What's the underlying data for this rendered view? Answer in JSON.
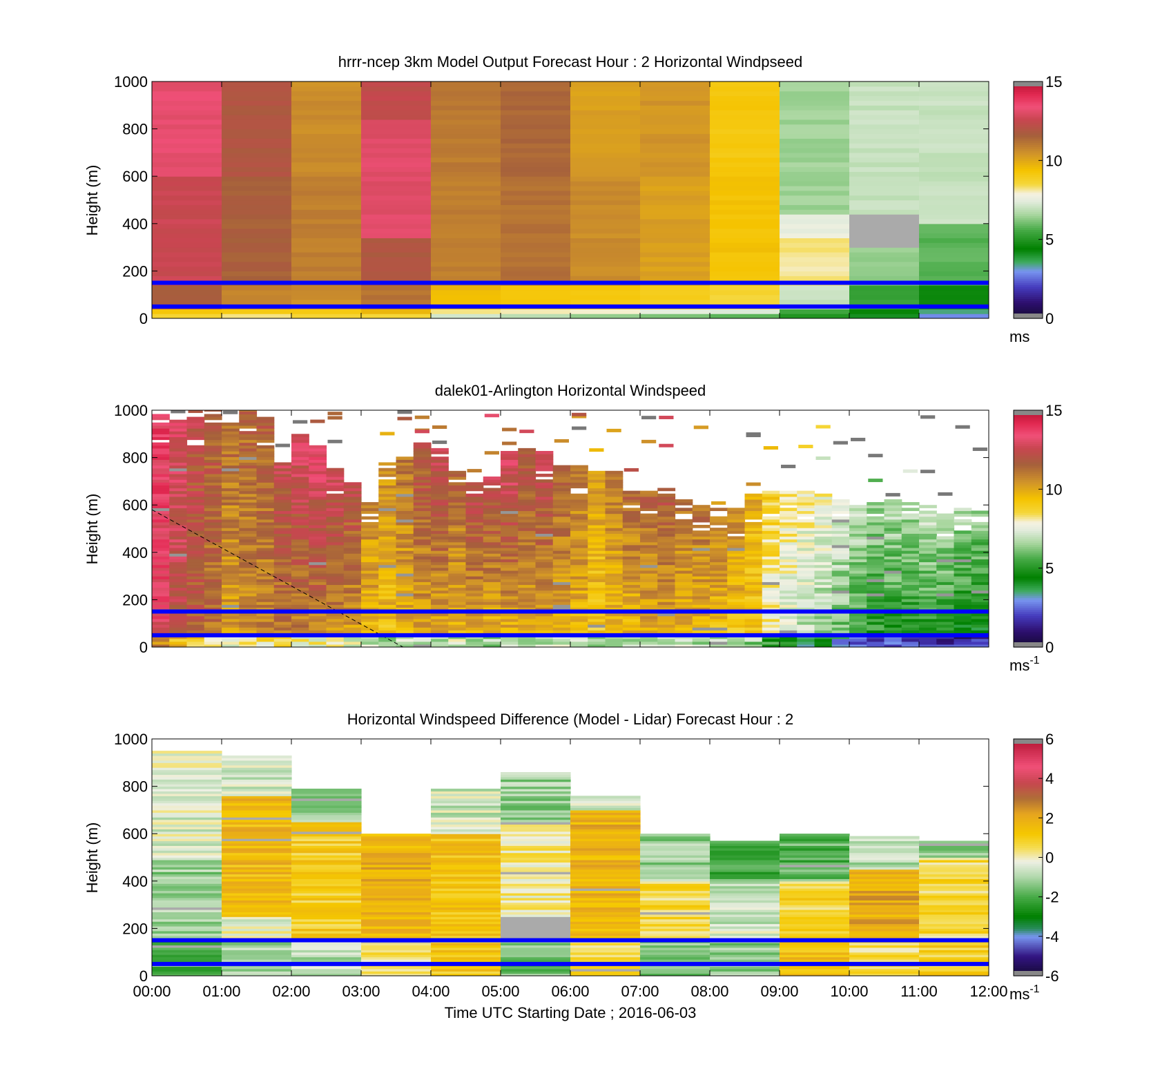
{
  "figure": {
    "time_axis_label": "Time UTC  Starting Date ; 2016-06-03"
  },
  "chart_data": [
    {
      "type": "heatmap",
      "title": "hrrr-ncep 3km Model Output   Forecast Hour : 2 Horizontal Windpseed",
      "ylabel": "Height (m)",
      "ylim": [
        0,
        1000
      ],
      "yticks": [
        0,
        200,
        400,
        600,
        800,
        1000
      ],
      "xlim": [
        0,
        12
      ],
      "x_tick_labels": [],
      "colorbar": {
        "range": [
          0,
          15
        ],
        "ticks": [
          0,
          5,
          10,
          15
        ],
        "unit_base": "ms",
        "unit_sup": ""
      },
      "reference_lines_m": [
        150,
        50
      ],
      "reference_line_color": "#0000ff",
      "columns": [
        {
          "hour": 0,
          "profile": [
            [
              0,
              20,
              8.5
            ],
            [
              20,
              40,
              9.4
            ],
            [
              40,
              150,
              11.8
            ],
            [
              150,
              600,
              12.6
            ],
            [
              600,
              1000,
              13.2
            ]
          ]
        },
        {
          "hour": 1,
          "profile": [
            [
              0,
              20,
              8.4
            ],
            [
              20,
              40,
              9.2
            ],
            [
              40,
              150,
              10.8
            ],
            [
              150,
              600,
              11.6
            ],
            [
              600,
              1000,
              11.9
            ]
          ]
        },
        {
          "hour": 2,
          "profile": [
            [
              0,
              20,
              8.6
            ],
            [
              20,
              40,
              9.3
            ],
            [
              40,
              150,
              10.6
            ],
            [
              150,
              600,
              10.9
            ],
            [
              600,
              1000,
              10.6
            ]
          ]
        },
        {
          "hour": 3,
          "profile": [
            [
              0,
              20,
              8.6
            ],
            [
              20,
              40,
              9.6
            ],
            [
              40,
              150,
              11.2
            ],
            [
              150,
              350,
              11.9
            ],
            [
              350,
              850,
              13.1
            ],
            [
              850,
              1000,
              12.4
            ]
          ]
        },
        {
          "hour": 4,
          "profile": [
            [
              0,
              20,
              7.2
            ],
            [
              20,
              40,
              8.4
            ],
            [
              40,
              150,
              9.6
            ],
            [
              150,
              600,
              10.9
            ],
            [
              600,
              1000,
              11.0
            ]
          ]
        },
        {
          "hour": 5,
          "profile": [
            [
              0,
              20,
              6.8
            ],
            [
              20,
              40,
              8.2
            ],
            [
              40,
              150,
              9.3
            ],
            [
              150,
              600,
              11.2
            ],
            [
              600,
              1000,
              11.4
            ]
          ]
        },
        {
          "hour": 6,
          "profile": [
            [
              0,
              20,
              6.5
            ],
            [
              20,
              40,
              8.0
            ],
            [
              40,
              150,
              9.2
            ],
            [
              150,
              600,
              10.6
            ],
            [
              600,
              1000,
              10.2
            ]
          ]
        },
        {
          "hour": 7,
          "profile": [
            [
              0,
              20,
              6.2
            ],
            [
              20,
              40,
              7.6
            ],
            [
              40,
              150,
              9.0
            ],
            [
              150,
              600,
              10.2
            ],
            [
              600,
              1000,
              10.4
            ]
          ]
        },
        {
          "hour": 8,
          "profile": [
            [
              0,
              20,
              5.8
            ],
            [
              20,
              40,
              7.2
            ],
            [
              40,
              150,
              8.6
            ],
            [
              150,
              600,
              9.4
            ],
            [
              600,
              1000,
              9.2
            ]
          ]
        },
        {
          "hour": 9,
          "profile": [
            [
              0,
              20,
              4.8
            ],
            [
              20,
              40,
              5.6
            ],
            [
              40,
              150,
              7.0
            ],
            [
              150,
              350,
              8.2
            ],
            [
              350,
              450,
              7.6
            ],
            [
              450,
              1000,
              6.5
            ]
          ]
        },
        {
          "hour": 10,
          "profile": [
            [
              0,
              20,
              4.0
            ],
            [
              20,
              40,
              4.6
            ],
            [
              40,
              150,
              5.4
            ],
            [
              150,
              300,
              6.4
            ],
            [
              300,
              450,
              "nan"
            ],
            [
              450,
              1000,
              7.0
            ]
          ]
        },
        {
          "hour": 11,
          "profile": [
            [
              0,
              20,
              3.0
            ],
            [
              20,
              40,
              3.4
            ],
            [
              40,
              150,
              4.6
            ],
            [
              150,
              400,
              5.8
            ],
            [
              400,
              1000,
              7.0
            ]
          ]
        }
      ]
    },
    {
      "type": "heatmap",
      "title": "dalek01-Arlington  Horizontal Windspeed",
      "ylabel": "Height (m)",
      "ylim": [
        0,
        1000
      ],
      "yticks": [
        0,
        200,
        400,
        600,
        800,
        1000
      ],
      "xlim": [
        0,
        12
      ],
      "x_tick_labels": [],
      "colorbar": {
        "range": [
          0,
          15
        ],
        "ticks": [
          0,
          5,
          10,
          15
        ],
        "unit_base": "ms",
        "unit_sup": "-1"
      },
      "reference_lines_m": [
        150,
        50
      ],
      "reference_line_color": "#0000ff",
      "dashed_line": {
        "points": [
          [
            0,
            580
          ],
          [
            3.6,
            0
          ]
        ]
      },
      "column_width_h": 0.25,
      "columns": [
        {
          "t": 0.0,
          "top": 980,
          "low": 13.2,
          "high": 13.6
        },
        {
          "t": 0.25,
          "top": 970,
          "low": 12.0,
          "high": 13.0
        },
        {
          "t": 0.5,
          "top": 970,
          "low": 11.6,
          "high": 12.2
        },
        {
          "t": 0.75,
          "top": 1000,
          "low": 11.0,
          "high": 11.8
        },
        {
          "t": 1.0,
          "top": 940,
          "low": 10.0,
          "high": 11.2
        },
        {
          "t": 1.25,
          "top": 1000,
          "low": 10.4,
          "high": 11.4
        },
        {
          "t": 1.5,
          "top": 970,
          "low": 10.6,
          "high": 11.6
        },
        {
          "t": 1.75,
          "top": 780,
          "low": 10.6,
          "high": 12.4
        },
        {
          "t": 2.0,
          "top": 890,
          "low": 10.4,
          "high": 13.0
        },
        {
          "t": 2.25,
          "top": 860,
          "low": 10.4,
          "high": 13.2
        },
        {
          "t": 2.5,
          "top": 750,
          "low": 10.2,
          "high": 12.6
        },
        {
          "t": 2.75,
          "top": 690,
          "low": 10.0,
          "high": 12.2
        },
        {
          "t": 3.0,
          "top": 610,
          "low": 9.6,
          "high": 10.6
        },
        {
          "t": 3.25,
          "top": 780,
          "low": 9.2,
          "high": 10.4
        },
        {
          "t": 3.5,
          "top": 800,
          "low": 9.6,
          "high": 11.0
        },
        {
          "t": 3.75,
          "top": 860,
          "low": 9.8,
          "high": 12.0
        },
        {
          "t": 4.0,
          "top": 830,
          "low": 9.6,
          "high": 12.4
        },
        {
          "t": 4.25,
          "top": 740,
          "low": 9.6,
          "high": 11.4
        },
        {
          "t": 4.5,
          "top": 690,
          "low": 9.4,
          "high": 12.4
        },
        {
          "t": 4.75,
          "top": 720,
          "low": 9.2,
          "high": 12.4
        },
        {
          "t": 5.0,
          "top": 820,
          "low": 9.4,
          "high": 13.0
        },
        {
          "t": 5.25,
          "top": 840,
          "low": 9.6,
          "high": 12.0
        },
        {
          "t": 5.5,
          "top": 820,
          "low": 9.6,
          "high": 12.6
        },
        {
          "t": 5.75,
          "top": 760,
          "low": 9.6,
          "high": 11.6
        },
        {
          "t": 6.0,
          "top": 760,
          "low": 9.4,
          "high": 11.2
        },
        {
          "t": 6.25,
          "top": 740,
          "low": 9.0,
          "high": 10.2
        },
        {
          "t": 6.5,
          "top": 740,
          "low": 9.4,
          "high": 10.8
        },
        {
          "t": 6.75,
          "top": 660,
          "low": 9.2,
          "high": 11.4
        },
        {
          "t": 7.0,
          "top": 650,
          "low": 9.6,
          "high": 11.4
        },
        {
          "t": 7.25,
          "top": 670,
          "low": 9.4,
          "high": 12.0
        },
        {
          "t": 7.5,
          "top": 620,
          "low": 9.4,
          "high": 11.2
        },
        {
          "t": 7.75,
          "top": 590,
          "low": 9.4,
          "high": 11.2
        },
        {
          "t": 8.0,
          "top": 580,
          "low": 9.2,
          "high": 11.0
        },
        {
          "t": 8.25,
          "top": 580,
          "low": 9.0,
          "high": 10.6
        },
        {
          "t": 8.5,
          "top": 640,
          "low": 9.0,
          "high": 9.8
        },
        {
          "t": 8.75,
          "top": 650,
          "low": 7.6,
          "high": 8.8
        },
        {
          "t": 9.0,
          "top": 650,
          "low": 7.0,
          "high": 8.4
        },
        {
          "t": 9.25,
          "top": 650,
          "low": 6.6,
          "high": 8.0
        },
        {
          "t": 9.5,
          "top": 640,
          "low": 6.2,
          "high": 7.8
        },
        {
          "t": 9.75,
          "top": 620,
          "low": 5.6,
          "high": 7.4
        },
        {
          "t": 10.0,
          "top": 600,
          "low": 5.2,
          "high": 7.0
        },
        {
          "t": 10.25,
          "top": 620,
          "low": 4.8,
          "high": 6.6
        },
        {
          "t": 10.5,
          "top": 620,
          "low": 4.6,
          "high": 6.8
        },
        {
          "t": 10.75,
          "top": 610,
          "low": 4.4,
          "high": 6.6
        },
        {
          "t": 11.0,
          "top": 590,
          "low": 4.4,
          "high": 7.2
        },
        {
          "t": 11.25,
          "top": 560,
          "low": 4.2,
          "high": 7.0
        },
        {
          "t": 11.5,
          "top": 580,
          "low": 4.0,
          "high": 6.6
        },
        {
          "t": 11.75,
          "top": 570,
          "low": 4.0,
          "high": 6.4
        }
      ]
    },
    {
      "type": "heatmap",
      "title": "Horizontal Windspeed Difference (Model - Lidar) Forecast Hour : 2",
      "ylabel": "Height (m)",
      "xlabel": "Time UTC  Starting Date ; 2016-06-03",
      "ylim": [
        0,
        1000
      ],
      "yticks": [
        0,
        200,
        400,
        600,
        800,
        1000
      ],
      "xlim": [
        0,
        12
      ],
      "x_tick_labels": [
        "00:00",
        "01:00",
        "02:00",
        "03:00",
        "04:00",
        "05:00",
        "06:00",
        "07:00",
        "08:00",
        "09:00",
        "10:00",
        "11:00",
        "12:00"
      ],
      "colorbar": {
        "range": [
          -6,
          6
        ],
        "ticks": [
          -6,
          -4,
          -2,
          0,
          2,
          4,
          6
        ],
        "unit_base": "ms",
        "unit_sup": "-1"
      },
      "reference_lines_m": [
        150,
        50
      ],
      "reference_line_color": "#0000ff",
      "columns": [
        {
          "hour": 0,
          "top": 950,
          "profile": [
            [
              0,
              150,
              -1.8
            ],
            [
              150,
              500,
              -1.2
            ],
            [
              500,
              950,
              -0.4
            ]
          ]
        },
        {
          "hour": 1,
          "top": 930,
          "profile": [
            [
              0,
              150,
              -1.0
            ],
            [
              150,
              250,
              -0.2
            ],
            [
              250,
              760,
              1.6
            ],
            [
              760,
              930,
              -0.6
            ]
          ]
        },
        {
          "hour": 2,
          "top": 790,
          "profile": [
            [
              0,
              150,
              -0.8
            ],
            [
              150,
              650,
              1.0
            ],
            [
              650,
              790,
              -1.4
            ]
          ]
        },
        {
          "hour": 3,
          "top": 600,
          "profile": [
            [
              0,
              150,
              0.4
            ],
            [
              150,
              600,
              1.8
            ]
          ]
        },
        {
          "hour": 4,
          "top": 790,
          "profile": [
            [
              0,
              150,
              1.2
            ],
            [
              150,
              600,
              1.4
            ],
            [
              600,
              790,
              -0.6
            ]
          ]
        },
        {
          "hour": 5,
          "top": 860,
          "profile": [
            [
              0,
              150,
              -1.6
            ],
            [
              150,
              250,
              "nan"
            ],
            [
              250,
              650,
              0.2
            ],
            [
              650,
              860,
              -1.2
            ]
          ]
        },
        {
          "hour": 6,
          "top": 760,
          "profile": [
            [
              0,
              150,
              0.6
            ],
            [
              150,
              700,
              1.8
            ],
            [
              700,
              760,
              -0.6
            ]
          ]
        },
        {
          "hour": 7,
          "top": 600,
          "profile": [
            [
              0,
              150,
              -1.6
            ],
            [
              150,
              400,
              0.6
            ],
            [
              400,
              600,
              -1.2
            ]
          ]
        },
        {
          "hour": 8,
          "top": 570,
          "profile": [
            [
              0,
              150,
              -1.4
            ],
            [
              150,
              400,
              -0.6
            ],
            [
              400,
              570,
              -2.0
            ]
          ]
        },
        {
          "hour": 9,
          "top": 600,
          "profile": [
            [
              0,
              150,
              1.4
            ],
            [
              150,
              400,
              0.8
            ],
            [
              400,
              600,
              -1.8
            ]
          ]
        },
        {
          "hour": 10,
          "top": 590,
          "profile": [
            [
              0,
              150,
              0.6
            ],
            [
              150,
              450,
              2.0
            ],
            [
              450,
              590,
              -0.8
            ]
          ]
        },
        {
          "hour": 11,
          "top": 570,
          "profile": [
            [
              0,
              150,
              1.0
            ],
            [
              150,
              500,
              0.6
            ],
            [
              500,
              570,
              -1.4
            ]
          ]
        }
      ]
    }
  ]
}
